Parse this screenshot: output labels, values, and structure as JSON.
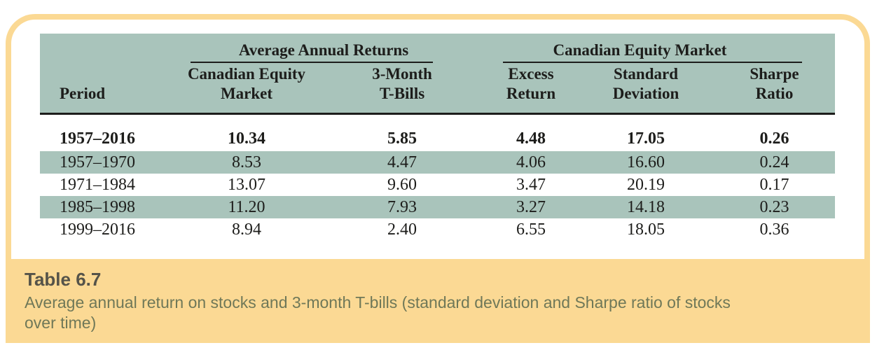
{
  "colors": {
    "card_border": "#fbd994",
    "footer_background": "#fbd994",
    "header_background": "#a9c4bb",
    "shaded_row_background": "#a9c4bb",
    "rule": "#1d1d1b",
    "caption_title": "#555349",
    "caption_text": "#6f7858"
  },
  "table": {
    "spanners": [
      {
        "label": "Average Annual Returns"
      },
      {
        "label": "Canadian Equity Market"
      }
    ],
    "columns": [
      {
        "label": "Period"
      },
      {
        "line1": "Canadian Equity",
        "line2": "Market"
      },
      {
        "line1": "3-Month",
        "line2": "T-Bills"
      },
      {
        "line1": "Excess",
        "line2": "Return"
      },
      {
        "line1": "Standard",
        "line2": "Deviation"
      },
      {
        "line1": "Sharpe",
        "line2": "Ratio"
      }
    ],
    "rows": [
      {
        "cells": [
          "1957–2016",
          "10.34",
          "5.85",
          "4.48",
          "17.05",
          "0.26"
        ],
        "bold": true,
        "shaded": false
      },
      {
        "cells": [
          "1957–1970",
          "8.53",
          "4.47",
          "4.06",
          "16.60",
          "0.24"
        ],
        "bold": false,
        "shaded": true
      },
      {
        "cells": [
          "1971–1984",
          "13.07",
          "9.60",
          "3.47",
          "20.19",
          "0.17"
        ],
        "bold": false,
        "shaded": false
      },
      {
        "cells": [
          "1985–1998",
          "11.20",
          "7.93",
          "3.27",
          "14.18",
          "0.23"
        ],
        "bold": false,
        "shaded": true
      },
      {
        "cells": [
          "1999–2016",
          "8.94",
          "2.40",
          "6.55",
          "18.05",
          "0.36"
        ],
        "bold": false,
        "shaded": false
      }
    ]
  },
  "caption": {
    "title": "Table 6.7",
    "text": "Average annual return on stocks and 3-month T-bills (standard deviation and Sharpe ratio of stocks over time)"
  },
  "chart_data": {
    "type": "table",
    "title": "Table 6.7",
    "column_groups": [
      "Average Annual Returns",
      "Canadian Equity Market"
    ],
    "columns": [
      "Period",
      "Canadian Equity Market (Avg Annual Return)",
      "3-Month T-Bills (Avg Annual Return)",
      "Excess Return",
      "Standard Deviation",
      "Sharpe Ratio"
    ],
    "rows": [
      [
        "1957–2016",
        10.34,
        5.85,
        4.48,
        17.05,
        0.26
      ],
      [
        "1957–1970",
        8.53,
        4.47,
        4.06,
        16.6,
        0.24
      ],
      [
        "1971–1984",
        13.07,
        9.6,
        3.47,
        20.19,
        0.17
      ],
      [
        "1985–1998",
        11.2,
        7.93,
        3.27,
        14.18,
        0.23
      ],
      [
        "1999–2016",
        8.94,
        2.4,
        6.55,
        18.05,
        0.36
      ]
    ]
  }
}
